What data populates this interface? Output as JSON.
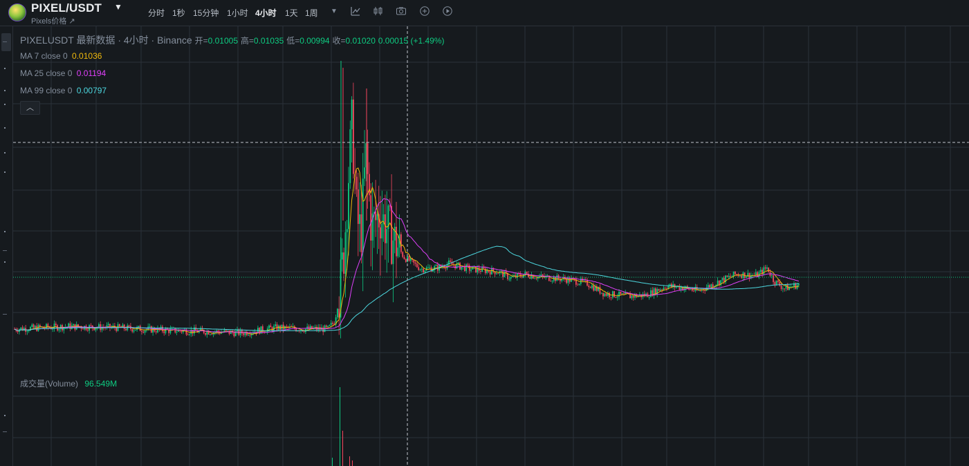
{
  "header": {
    "pair": "PIXEL/USDT",
    "subtitle": "Pixels价格 ↗",
    "timeframes": [
      "分时",
      "1秒",
      "15分钟",
      "1小时",
      "4小时",
      "1天",
      "1周"
    ],
    "active_timeframe": "4小时"
  },
  "legend": {
    "symbol": "PIXELUSDT",
    "desc": "最新数据 · 4小时 · Binance",
    "open_label": "开=",
    "open": "0.01005",
    "high_label": "高=",
    "high": "0.01035",
    "low_label": "低=",
    "low": "0.00994",
    "close_label": "收=",
    "close": "0.01020",
    "change": "0.00015 (+1.49%)",
    "ma": [
      {
        "label": "MA 7 close 0",
        "value": "0.01036",
        "color": "#f0b90b"
      },
      {
        "label": "MA 25 close 0",
        "value": "0.01194",
        "color": "#e040fb"
      },
      {
        "label": "MA 99 close 0",
        "value": "0.00797",
        "color": "#4dd8e0"
      }
    ],
    "volume_label": "成交量(Volume)",
    "volume_value": "96.549M"
  },
  "colors": {
    "up": "#0ecb81",
    "down": "#f6465d",
    "bg": "#161a1e",
    "grid": "#2b3139",
    "ma7": "#f0b90b",
    "ma25": "#e040fb",
    "ma99": "#4dd8e0"
  },
  "chart_data": {
    "type": "candlestick",
    "interval": "4h",
    "last_close": 0.0102,
    "price_trend": [
      {
        "phase": "pre-listing-range",
        "approx_price": 0.0055
      },
      {
        "phase": "spike-high",
        "approx_price": 0.024
      },
      {
        "phase": "decline",
        "approx_price": 0.0115
      },
      {
        "phase": "mid-range",
        "approx_price": 0.0105
      },
      {
        "phase": "low",
        "approx_price": 0.0082
      },
      {
        "phase": "recovery-high",
        "approx_price": 0.0108
      },
      {
        "phase": "latest",
        "approx_price": 0.0102
      }
    ]
  }
}
